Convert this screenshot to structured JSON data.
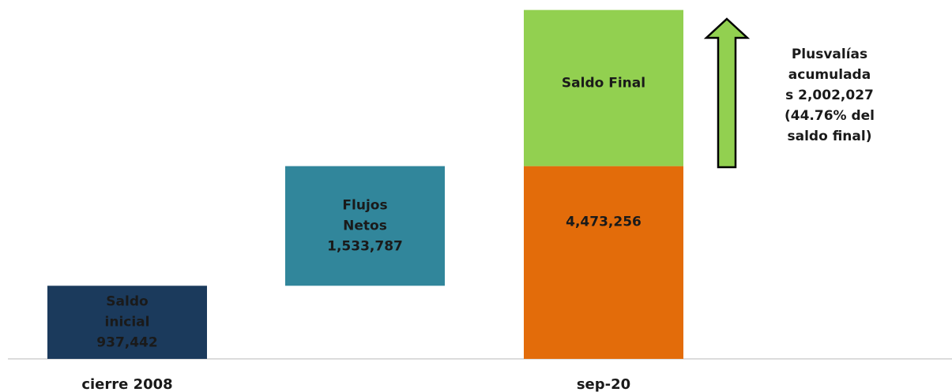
{
  "chart_data": {
    "type": "waterfall",
    "categories": [
      "cierre 2008",
      null,
      "sep-20"
    ],
    "labels": [
      [
        "Saldo",
        "inicial"
      ],
      [
        "Flujos",
        "Netos"
      ],
      [
        "Saldo Final"
      ]
    ],
    "values": [
      937442,
      1533787,
      2002027
    ],
    "value_labels": [
      "937,442",
      "1,533,787",
      null
    ],
    "colors": [
      "#1b3a5c",
      "#31869b",
      "#92d050"
    ],
    "total": 4473256,
    "total_label": "4,473,256",
    "total_color": "#e36c0a",
    "annotation": [
      "Plusvalías",
      "acumulada",
      "s 2,002,027",
      "(44.76% del",
      "saldo final)"
    ],
    "ylim": [
      0,
      4500000
    ]
  }
}
